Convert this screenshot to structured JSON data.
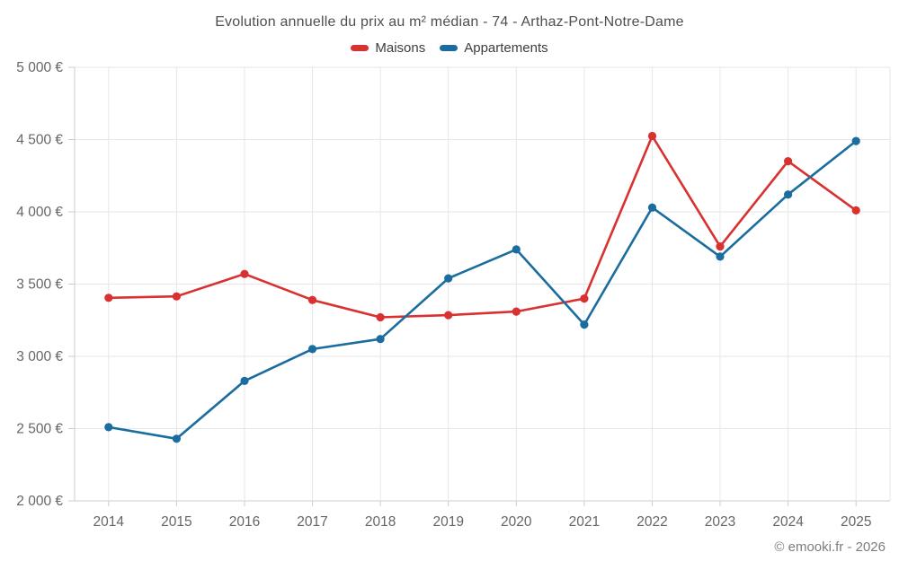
{
  "chart_data": {
    "type": "line",
    "title": "Evolution annuelle du prix au m² médian - 74 - Arthaz-Pont-Notre-Dame",
    "categories": [
      "2014",
      "2015",
      "2016",
      "2017",
      "2018",
      "2019",
      "2020",
      "2021",
      "2022",
      "2023",
      "2024",
      "2025"
    ],
    "series": [
      {
        "name": "Maisons",
        "color": "#d93030",
        "values": [
          3405,
          3415,
          3570,
          3390,
          3270,
          3285,
          3310,
          3400,
          4525,
          3760,
          4350,
          4010
        ]
      },
      {
        "name": "Appartements",
        "color": "#1a6d9e",
        "values": [
          2510,
          2430,
          2830,
          3050,
          3120,
          3540,
          3740,
          3220,
          4030,
          3690,
          4120,
          4490
        ]
      }
    ],
    "xlabel": "",
    "ylabel": "",
    "ylim": [
      2000,
      5000
    ],
    "yticks": [
      2000,
      2500,
      3000,
      3500,
      4000,
      4500,
      5000
    ],
    "ytick_labels": [
      "2 000 €",
      "2 500 €",
      "3 000 €",
      "3 500 €",
      "4 000 €",
      "4 500 €",
      "5 000 €"
    ],
    "legend_position": "top",
    "grid": true,
    "grid_color": "#e6e6e6",
    "axis_line_color": "#cccccc",
    "tick_label_color": "#666666"
  },
  "footer": {
    "copyright": "© emooki.fr - 2026"
  }
}
